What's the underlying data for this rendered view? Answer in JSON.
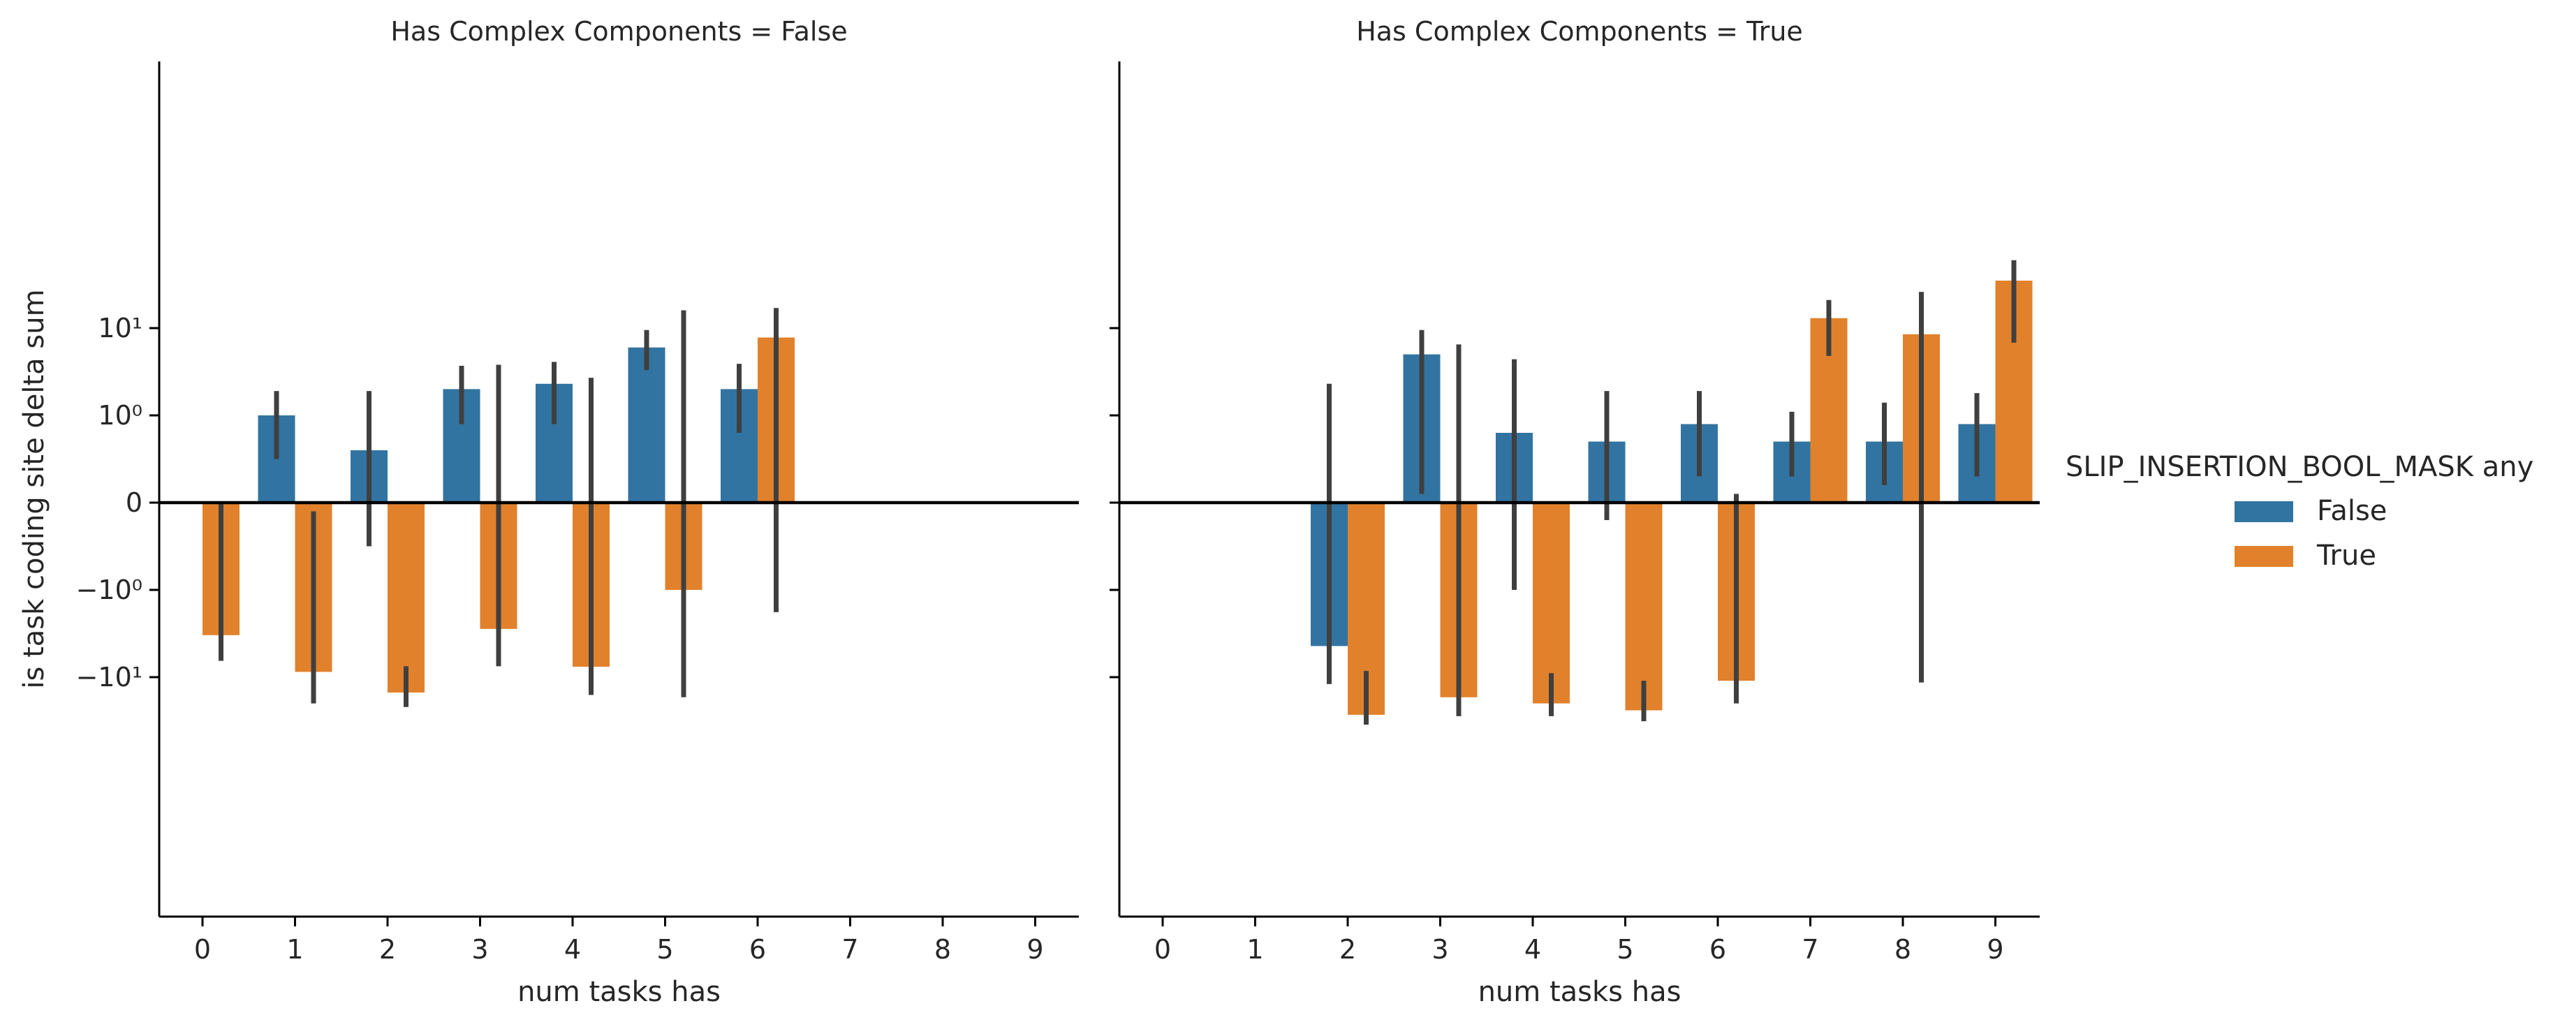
{
  "chart_data": [
    {
      "type": "bar",
      "title": "Has Complex Components = False",
      "xlabel": "num tasks has",
      "ylabel": "is task coding site delta sum",
      "yscale": "symlog",
      "y_ticks": [
        "10¹",
        "10⁰",
        "0",
        "−10⁰",
        "−10¹"
      ],
      "categories": [
        "0",
        "1",
        "2",
        "3",
        "4",
        "5",
        "6",
        "7",
        "8",
        "9"
      ],
      "series": [
        {
          "name": "False",
          "color": "#3274a1",
          "values": [
            null,
            1.0,
            0.6,
            2.0,
            2.3,
            6.0,
            2.0,
            null,
            null,
            null
          ],
          "ci": [
            null,
            [
              0.5,
              1.9
            ],
            [
              -0.5,
              1.9
            ],
            [
              0.9,
              3.7
            ],
            [
              0.9,
              4.1
            ],
            [
              3.3,
              9.5
            ],
            [
              0.8,
              3.9
            ],
            null,
            null,
            null
          ]
        },
        {
          "name": "True",
          "color": "#e1812c",
          "values": [
            -3.3,
            -8.7,
            -15.0,
            -2.8,
            -7.6,
            -1.0,
            7.8,
            null,
            null,
            null
          ],
          "ci": [
            [
              -6.5,
              0.0
            ],
            [
              -20.0,
              -0.1
            ],
            [
              -22.0,
              -7.5
            ],
            [
              -7.5,
              3.8
            ],
            [
              -16.0,
              2.7
            ],
            [
              -17.0,
              16.0
            ],
            [
              -1.8,
              17.0
            ],
            null,
            null,
            null
          ]
        }
      ]
    },
    {
      "type": "bar",
      "title": "Has Complex Components = True",
      "xlabel": "num tasks has",
      "ylabel": "",
      "yscale": "symlog",
      "categories": [
        "0",
        "1",
        "2",
        "3",
        "4",
        "5",
        "6",
        "7",
        "8",
        "9"
      ],
      "series": [
        {
          "name": "False",
          "color": "#3274a1",
          "values": [
            null,
            null,
            -4.4,
            5.0,
            0.8,
            0.7,
            0.9,
            0.7,
            0.7,
            0.9
          ],
          "ci": [
            null,
            null,
            [
              -12.0,
              2.3
            ],
            [
              0.1,
              9.5
            ],
            [
              -1.0,
              4.4
            ],
            [
              -0.2,
              1.9
            ],
            [
              0.3,
              1.9
            ],
            [
              0.3,
              1.1
            ],
            [
              0.2,
              1.4
            ],
            [
              0.3,
              1.8
            ]
          ],
          "labels": []
        },
        {
          "name": "True",
          "color": "#e1812c",
          "values": [
            null,
            null,
            -27.0,
            -17.0,
            -20.0,
            -24.0,
            -11.0,
            13.0,
            8.5,
            35.0
          ],
          "ci": [
            [
              null
            ],
            [
              null
            ],
            [
              -35.0,
              -8.5
            ],
            [
              -28.0,
              6.5
            ],
            [
              -28.0,
              -9.0
            ],
            [
              -32.0,
              -11.0
            ],
            [
              -20.0,
              0.1
            ],
            [
              4.8,
              21.0
            ],
            [
              -11.5,
              26.0
            ],
            [
              6.8,
              60.0
            ]
          ]
        }
      ]
    }
  ],
  "legend": {
    "title": "SLIP_INSERTION_BOOL_MASK any",
    "placement": "right",
    "items": [
      {
        "label": "False",
        "color": "#3274a1"
      },
      {
        "label": "True",
        "color": "#e1812c"
      }
    ]
  },
  "errorbar_color": "#3f3f3f"
}
